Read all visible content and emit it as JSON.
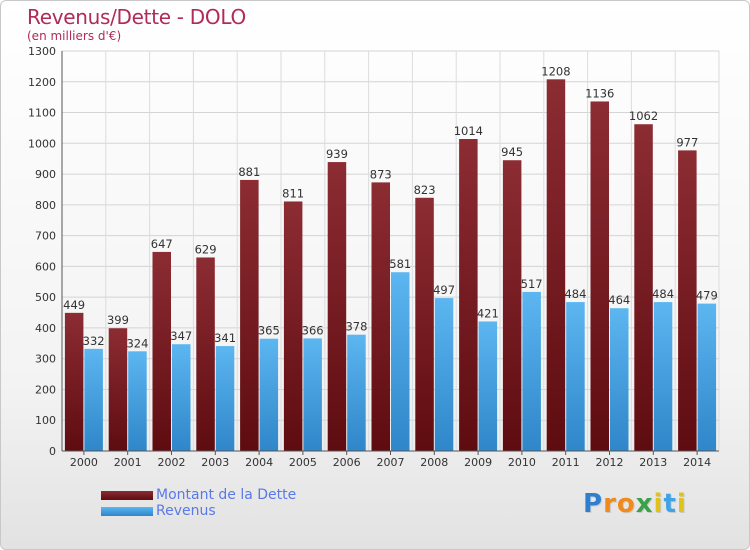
{
  "header": {
    "title": "Revenus/Dette - DOLO",
    "subtitle": "(en milliers d'€)"
  },
  "colors": {
    "dette": "#7a1a1f",
    "dette_top": "#8a2a30",
    "revenus": "#3fa3e6",
    "revenus_light": "#5bb4ee",
    "title": "#b02a5a",
    "legend_text": "#5b79e6"
  },
  "legend": {
    "dette_label": "Montant de la Dette",
    "revenus_label": "Revenus"
  },
  "logo": {
    "letters": [
      "P",
      "r",
      "o",
      "x",
      "i",
      "t",
      "i"
    ],
    "colors": [
      "#2f7fd1",
      "#f08a1c",
      "#f08a1c",
      "#3aa34a",
      "#e0c21a",
      "#3fa3e6",
      "#e0c21a"
    ]
  },
  "chart_data": {
    "type": "bar",
    "categories": [
      "2000",
      "2001",
      "2002",
      "2003",
      "2004",
      "2005",
      "2006",
      "2007",
      "2008",
      "2009",
      "2010",
      "2011",
      "2012",
      "2013",
      "2014"
    ],
    "series": [
      {
        "name": "Montant de la Dette",
        "values": [
          449,
          399,
          647,
          629,
          881,
          811,
          939,
          873,
          823,
          1014,
          945,
          1208,
          1136,
          1062,
          977
        ]
      },
      {
        "name": "Revenus",
        "values": [
          332,
          324,
          347,
          341,
          365,
          366,
          378,
          581,
          497,
          421,
          517,
          484,
          464,
          484,
          479
        ]
      }
    ],
    "yticks": [
      0,
      100,
      200,
      300,
      400,
      500,
      600,
      700,
      800,
      900,
      1000,
      1100,
      1200,
      1300
    ],
    "ylim": [
      0,
      1300
    ],
    "grid": true,
    "legend_position": "bottom-left"
  }
}
